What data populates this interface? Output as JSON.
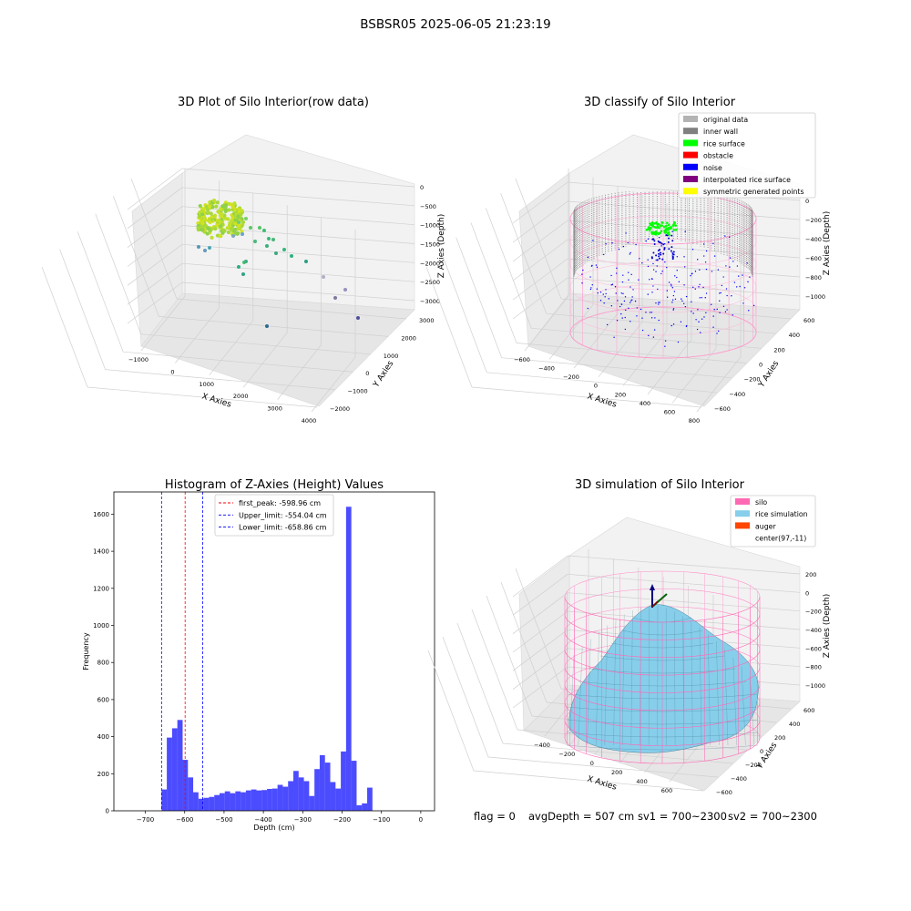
{
  "suptitle": "BSBSR05 2025-06-05 21:23:19",
  "footer": {
    "flag": "flag = 0",
    "avg_depth": "avgDepth = 507 cm",
    "sv1": "sv1 = 700~2300",
    "sv2": "sv2 = 700~2300"
  },
  "chart_data": [
    {
      "type": "scatter",
      "title": "3D Plot of Silo Interior(row data)",
      "xlabel": "X Axies",
      "ylabel": "Y Axies",
      "zlabel": "Z Axies (Depth)",
      "x_ticks": [
        "−1000",
        "0",
        "1000",
        "2000",
        "3000",
        "4000"
      ],
      "y_ticks": [
        "−2000",
        "−1000",
        "0",
        "1000",
        "2000",
        "3000"
      ],
      "z_ticks": [
        "0",
        "−500",
        "−1000",
        "−1500",
        "−2000",
        "−2500",
        "−3000"
      ],
      "colormap": "viridis"
    },
    {
      "type": "scatter",
      "title": "3D classify of Silo Interior",
      "xlabel": "X Axies",
      "ylabel": "Y Axies",
      "zlabel": "Z Axies (Depth)",
      "x_ticks": [
        "−600",
        "−400",
        "−200",
        "0",
        "200",
        "400",
        "600",
        "800"
      ],
      "y_ticks": [
        "−600",
        "−400",
        "−200",
        "0",
        "200",
        "400",
        "600"
      ],
      "z_ticks": [
        "0",
        "−200",
        "−400",
        "−600",
        "−800",
        "−1000"
      ],
      "legend": [
        {
          "label": "original data",
          "color": "#b3b3b3"
        },
        {
          "label": "inner wall",
          "color": "#808080"
        },
        {
          "label": "rice surface",
          "color": "#00ff00"
        },
        {
          "label": "obstacle",
          "color": "#ff0000"
        },
        {
          "label": "noise",
          "color": "#0000ff"
        },
        {
          "label": "interpolated rice surface",
          "color": "#800080"
        },
        {
          "label": "symmetric generated points",
          "color": "#ffff00"
        }
      ]
    },
    {
      "type": "bar",
      "title": "Histogram of Z-Axies (Height) Values",
      "xlabel": "Depth (cm)",
      "ylabel": "Frequency",
      "xlim": [
        -780,
        35
      ],
      "ylim": [
        0,
        1720
      ],
      "x_ticks": [
        {
          "v": -700,
          "label": "−700"
        },
        {
          "v": -600,
          "label": "−600"
        },
        {
          "v": -500,
          "label": "−500"
        },
        {
          "v": -400,
          "label": "−400"
        },
        {
          "v": -300,
          "label": "−300"
        },
        {
          "v": -200,
          "label": "−200"
        },
        {
          "v": -100,
          "label": "−100"
        },
        {
          "v": 0,
          "label": "0"
        }
      ],
      "y_ticks": [
        {
          "v": 0,
          "label": "0"
        },
        {
          "v": 200,
          "label": "200"
        },
        {
          "v": 400,
          "label": "400"
        },
        {
          "v": 600,
          "label": "600"
        },
        {
          "v": 800,
          "label": "800"
        },
        {
          "v": 1000,
          "label": "1000"
        },
        {
          "v": 1200,
          "label": "1200"
        },
        {
          "v": 1400,
          "label": "1400"
        },
        {
          "v": 1600,
          "label": "1600"
        }
      ],
      "bin_start": -658.86,
      "bin_width": 13.4,
      "bar_color": "#0000ff",
      "values": [
        115,
        395,
        445,
        490,
        275,
        180,
        100,
        65,
        70,
        75,
        85,
        95,
        105,
        95,
        105,
        100,
        110,
        115,
        110,
        112,
        118,
        120,
        140,
        130,
        160,
        215,
        180,
        160,
        80,
        225,
        300,
        260,
        155,
        120,
        320,
        1640,
        270,
        30,
        40,
        125
      ],
      "lines": [
        {
          "label": "first_peak: -598.96 cm",
          "value": -598.96,
          "color": "#ff0000"
        },
        {
          "label": "Upper_limit: -554.04 cm",
          "value": -554.04,
          "color": "#0000ff"
        },
        {
          "label": "Lower_limit: -658.86 cm",
          "value": -658.86,
          "color": "#0000ff"
        }
      ]
    },
    {
      "type": "surface",
      "title": "3D simulation of Silo Interior",
      "xlabel": "X Axies",
      "ylabel": "Y Axies",
      "zlabel": "Z Axies (Depth)",
      "x_ticks": [
        "−400",
        "−200",
        "0",
        "200",
        "400",
        "600"
      ],
      "y_ticks": [
        "−600",
        "−400",
        "−200",
        "0",
        "200",
        "400",
        "600"
      ],
      "z_ticks": [
        "200",
        "0",
        "−200",
        "−400",
        "−600",
        "−800",
        "−1000"
      ],
      "legend": [
        {
          "label": "silo",
          "color": "#ff69b4"
        },
        {
          "label": "rice simulation",
          "color": "#87ceeb"
        },
        {
          "label": "auger",
          "color": "#ff4500"
        },
        {
          "label": "center(97,-11)",
          "color": "none"
        }
      ]
    }
  ]
}
